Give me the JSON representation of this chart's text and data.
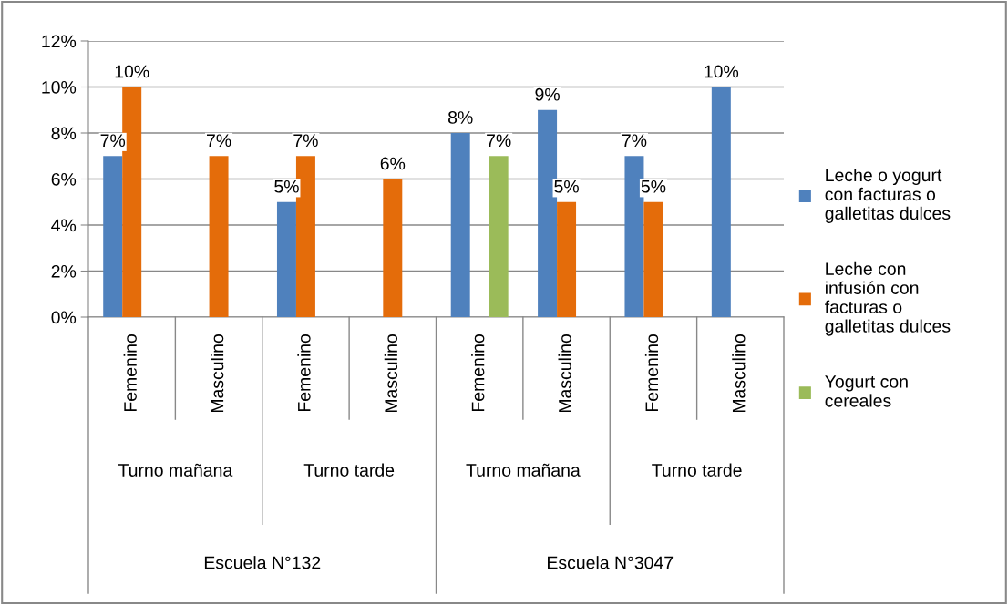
{
  "chart_data": {
    "type": "bar",
    "categories": [
      "Femenino",
      "Masculino",
      "Femenino",
      "Masculino",
      "Femenino",
      "Masculino",
      "Femenino",
      "Masculino"
    ],
    "series": [
      {
        "name": "Leche o yogurt\ncon facturas o\ngalletitas dulces",
        "color": "#4f81bd",
        "values": [
          7,
          null,
          5,
          null,
          8,
          9,
          7,
          10
        ],
        "value_labels": [
          "7%",
          null,
          "5%",
          null,
          "8%",
          "9%",
          "7%",
          "10%"
        ]
      },
      {
        "name": "Leche con\ninfusión con\nfacturas o\ngalletitas dulces",
        "color": "#e46c0a",
        "values": [
          10,
          7,
          7,
          6,
          null,
          5,
          5,
          null
        ],
        "value_labels": [
          "10%",
          "7%",
          "7%",
          "6%",
          null,
          "5%",
          "5%",
          null
        ]
      },
      {
        "name": "Yogurt con\ncereales",
        "color": "#9bbb59",
        "values": [
          null,
          null,
          null,
          null,
          7,
          null,
          null,
          null
        ],
        "value_labels": [
          null,
          null,
          null,
          null,
          "7%",
          null,
          null,
          null
        ]
      }
    ],
    "annotations": [
      "Turno mañana",
      "Turno tarde",
      "Turno mañana",
      "Turno tarde",
      "Escuela N°132",
      "Escuela N°3047"
    ],
    "ylim": [
      0,
      12
    ],
    "yticks": [
      {
        "value": 0,
        "label": "0%"
      },
      {
        "value": 2,
        "label": "2%"
      },
      {
        "value": 4,
        "label": "4%"
      },
      {
        "value": 6,
        "label": "6%"
      },
      {
        "value": 8,
        "label": "8%"
      },
      {
        "value": 10,
        "label": "10%"
      },
      {
        "value": 12,
        "label": "12%"
      }
    ],
    "grid": "y",
    "legend": "right"
  }
}
